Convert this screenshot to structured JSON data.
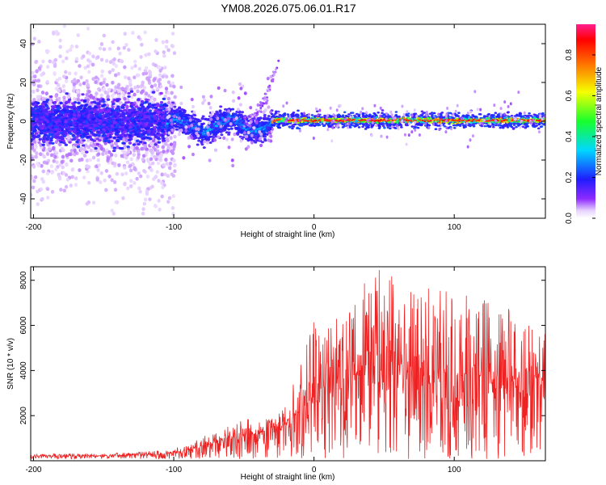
{
  "figure_title": "YM08.2026.075.06.01.R17",
  "colors": {
    "snr_line": "#ee2222",
    "axis": "#000000"
  },
  "chart_data": [
    {
      "type": "heatmap",
      "title": "",
      "xlabel": "Height of straight line (km)",
      "ylabel": "Frequency (Hz)",
      "xlim": [
        -202,
        165
      ],
      "ylim": [
        -50,
        50
      ],
      "xticks": [
        -200,
        -100,
        0,
        100
      ],
      "yticks": [
        -40,
        -20,
        0,
        20,
        40
      ],
      "colorbar": {
        "label": "Normalized spectral amplitude",
        "range": [
          0,
          0.95
        ],
        "ticks": [
          0.0,
          0.2,
          0.4,
          0.6,
          0.8
        ],
        "colormap": "rainbow (violet-blue-cyan-green-yellow-red-magenta)"
      },
      "features": {
        "noisy_region_x": [
          -202,
          -105
        ],
        "noisy_region_freq_spread": [
          -50,
          50
        ],
        "transition_region_x": [
          -105,
          -30
        ],
        "dispersed_arc": {
          "x": [
            -50,
            -25
          ],
          "freq": [
            0,
            32
          ]
        },
        "stable_line_x": [
          -30,
          165
        ],
        "stable_line_freq": 0.5,
        "stable_line_peak_amplitude": 0.95
      }
    },
    {
      "type": "line",
      "title": "",
      "xlabel": "Height of straight line (km)",
      "ylabel": "SNR (10 * v/v)",
      "xlim": [
        -202,
        165
      ],
      "ylim": [
        0,
        8600
      ],
      "xticks": [
        -200,
        -100,
        0,
        100
      ],
      "yticks": [
        2000,
        4000,
        6000,
        8000
      ],
      "series": [
        {
          "color": "#ee2222",
          "envelope": {
            "x": [
              -202,
              -150,
              -110,
              -90,
              -80,
              -60,
              -40,
              -20,
              -10,
              0,
              20,
              40,
              60,
              80,
              100,
              120,
              140,
              165
            ],
            "mean": [
              200,
              220,
              300,
              450,
              650,
              1000,
              1200,
              1600,
              2300,
              2800,
              3600,
              4200,
              4100,
              4000,
              3800,
              3700,
              3600,
              3700
            ],
            "max": [
              300,
              320,
              450,
              700,
              1100,
              1600,
              2000,
              2600,
              4500,
              6300,
              6600,
              8600,
              8300,
              7800,
              7600,
              7200,
              6800,
              5800
            ]
          }
        }
      ]
    }
  ]
}
